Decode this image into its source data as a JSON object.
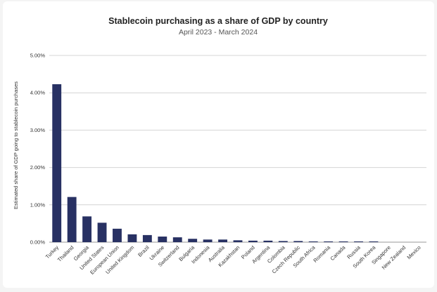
{
  "chart_data": {
    "type": "bar",
    "title": "Stablecoin purchasing as a share of GDP by country",
    "subtitle": "April 2023 - March 2024",
    "xlabel": "",
    "ylabel": "Estimated share of GDP going to stablecoin purchases",
    "ylim": [
      0,
      5
    ],
    "yticks": [
      0,
      1,
      2,
      3,
      4,
      5
    ],
    "ytick_labels": [
      "0.00%",
      "1.00%",
      "2.00%",
      "3.00%",
      "4.00%",
      "5.00%"
    ],
    "grid": true,
    "bar_color": "#283163",
    "categories": [
      "Turkey",
      "Thailand",
      "Georgia",
      "United States",
      "European Union",
      "United Kingdom",
      "Brazil",
      "Ukraine",
      "Switzerland",
      "Bulgaria",
      "Indonesia",
      "Australia",
      "Kazakhstan",
      "Poland",
      "Argentina",
      "Colombia",
      "Czech Republic",
      "South Africa",
      "Romania",
      "Canada",
      "Russia",
      "South Korea",
      "Singapore",
      "New Zealand",
      "Mexico"
    ],
    "values": [
      4.23,
      1.21,
      0.69,
      0.52,
      0.36,
      0.21,
      0.19,
      0.15,
      0.13,
      0.09,
      0.07,
      0.07,
      0.05,
      0.04,
      0.04,
      0.03,
      0.03,
      0.02,
      0.02,
      0.02,
      0.02,
      0.02,
      0.0,
      0.0,
      0.0
    ]
  }
}
